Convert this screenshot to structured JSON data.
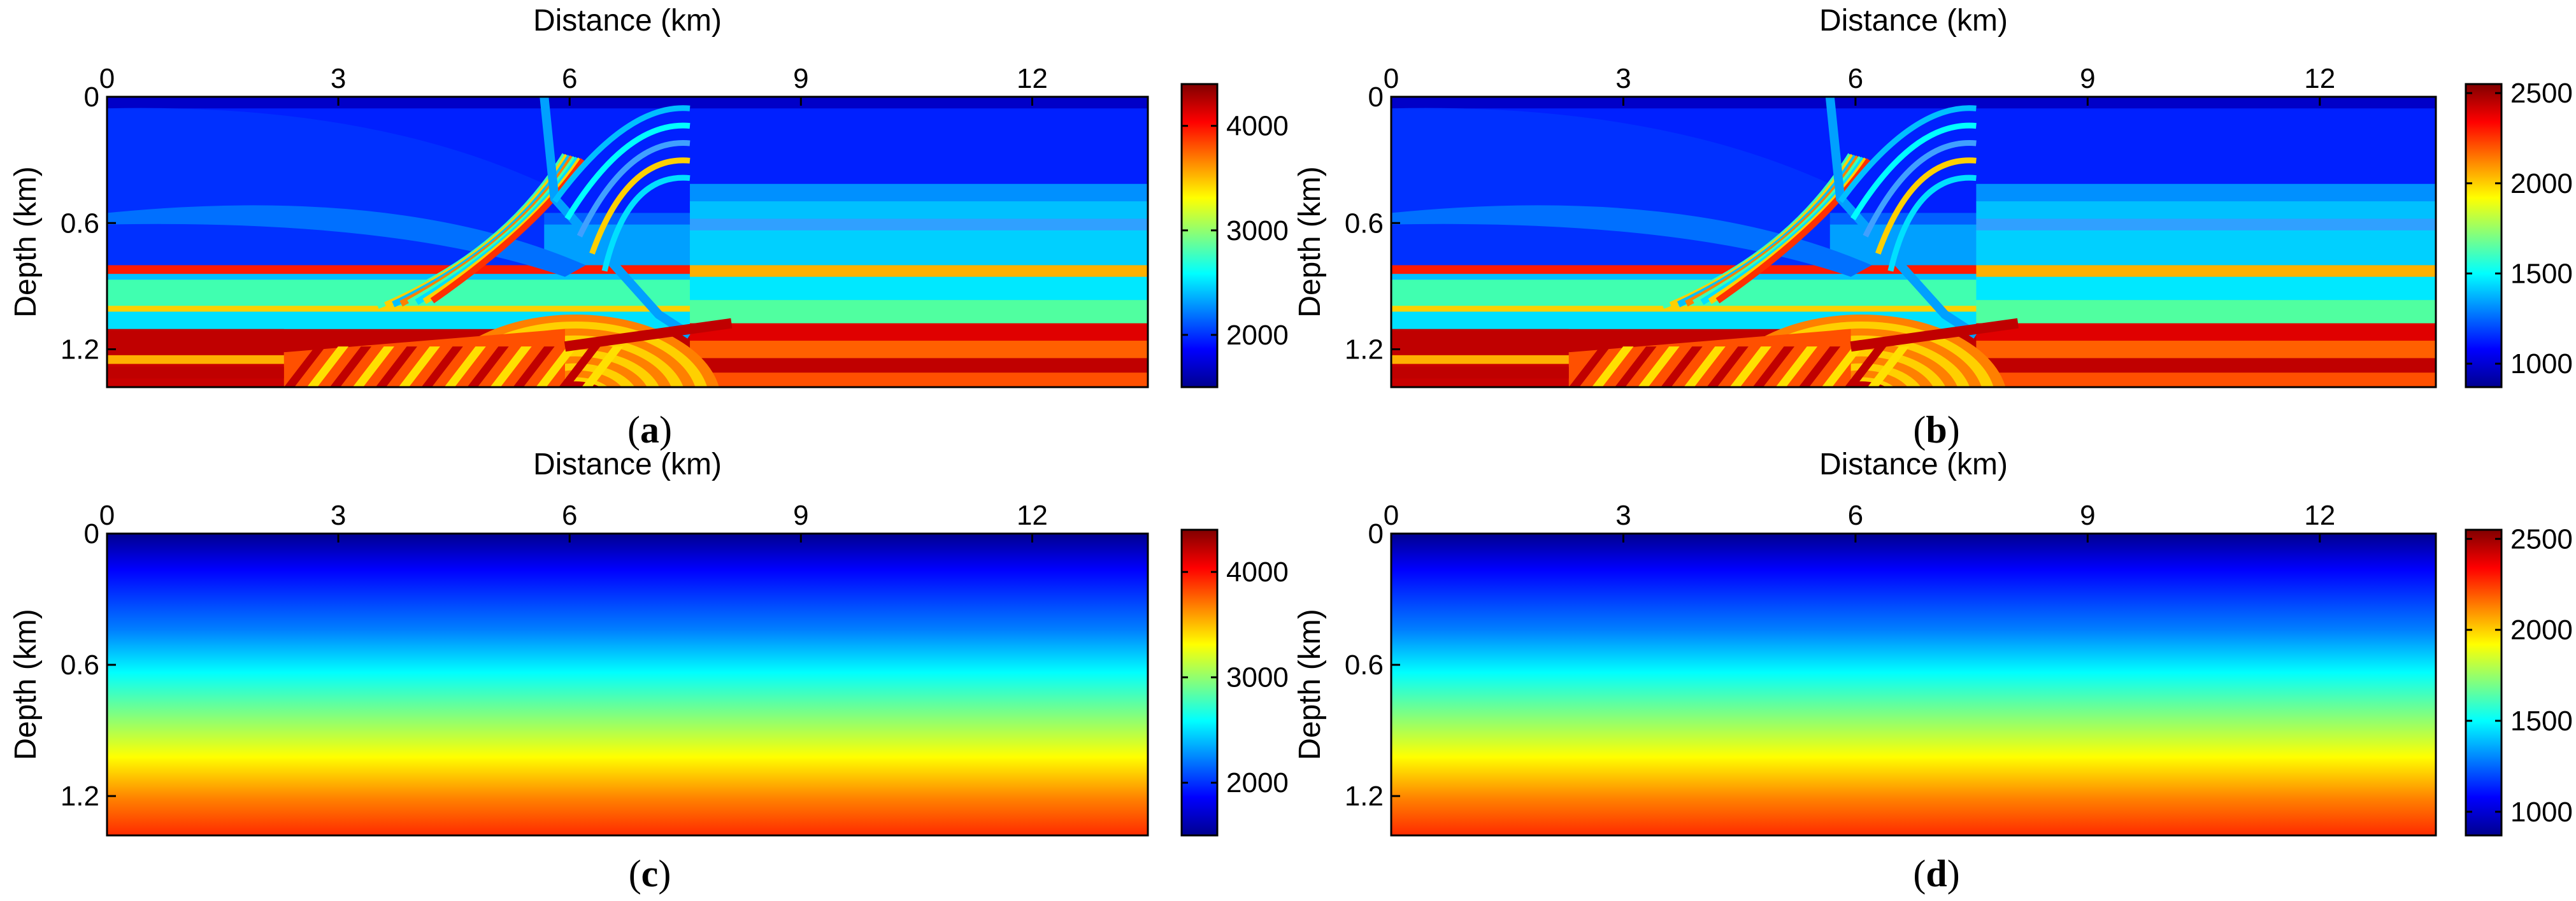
{
  "colormap": [
    "#00008f",
    "#0000ff",
    "#0080ff",
    "#00ffff",
    "#80ff80",
    "#ffff00",
    "#ff8000",
    "#ff0000",
    "#800000"
  ],
  "chart_data": [
    {
      "type": "heatmap",
      "panel_label": {
        "open": "(",
        "letter": "a",
        "close": ")"
      },
      "xlabel": "Distance (km)",
      "ylabel": "Depth (km)",
      "xlim": [
        0,
        13.5
      ],
      "ylim": [
        0,
        1.38
      ],
      "xticks": [
        "0",
        "3",
        "6",
        "9",
        "12"
      ],
      "xtick_values": [
        0,
        3,
        6,
        9,
        12
      ],
      "yticks": [
        "0",
        "0.6",
        "1.2"
      ],
      "ytick_values": [
        0,
        0.6,
        1.2
      ],
      "model": "layered-fault",
      "colorbar": {
        "min": 1500,
        "max": 4400,
        "ticks": [
          "2000",
          "3000",
          "4000"
        ],
        "tick_values": [
          2000,
          3000,
          4000
        ]
      }
    },
    {
      "type": "heatmap",
      "panel_label": {
        "open": "(",
        "letter": "b",
        "close": ")"
      },
      "xlabel": "Distance (km)",
      "ylabel": "Depth (km)",
      "xlim": [
        0,
        13.5
      ],
      "ylim": [
        0,
        1.38
      ],
      "xticks": [
        "0",
        "3",
        "6",
        "9",
        "12"
      ],
      "xtick_values": [
        0,
        3,
        6,
        9,
        12
      ],
      "yticks": [
        "0",
        "0.6",
        "1.2"
      ],
      "ytick_values": [
        0,
        0.6,
        1.2
      ],
      "model": "layered-fault",
      "colorbar": {
        "min": 870,
        "max": 2550,
        "ticks": [
          "1000",
          "1500",
          "2000",
          "2500"
        ],
        "tick_values": [
          1000,
          1500,
          2000,
          2500
        ]
      }
    },
    {
      "type": "heatmap",
      "panel_label": {
        "open": "(",
        "letter": "c",
        "close": ")"
      },
      "xlabel": "Distance (km)",
      "ylabel": "Depth (km)",
      "xlim": [
        0,
        13.5
      ],
      "ylim": [
        0,
        1.38
      ],
      "xticks": [
        "0",
        "3",
        "6",
        "9",
        "12"
      ],
      "xtick_values": [
        0,
        3,
        6,
        9,
        12
      ],
      "yticks": [
        "0",
        "0.6",
        "1.2"
      ],
      "ytick_values": [
        0,
        0.6,
        1.2
      ],
      "model": "linear-gradient",
      "colorbar": {
        "min": 1500,
        "max": 4400,
        "ticks": [
          "2000",
          "3000",
          "4000"
        ],
        "tick_values": [
          2000,
          3000,
          4000
        ]
      }
    },
    {
      "type": "heatmap",
      "panel_label": {
        "open": "(",
        "letter": "d",
        "close": ")"
      },
      "xlabel": "Distance (km)",
      "ylabel": "Depth (km)",
      "xlim": [
        0,
        13.5
      ],
      "ylim": [
        0,
        1.38
      ],
      "xticks": [
        "0",
        "3",
        "6",
        "9",
        "12"
      ],
      "xtick_values": [
        0,
        3,
        6,
        9,
        12
      ],
      "yticks": [
        "0",
        "0.6",
        "1.2"
      ],
      "ytick_values": [
        0,
        0.6,
        1.2
      ],
      "model": "linear-gradient",
      "colorbar": {
        "min": 870,
        "max": 2550,
        "ticks": [
          "1000",
          "1500",
          "2000",
          "2500"
        ],
        "tick_values": [
          1000,
          1500,
          2000,
          2500
        ]
      }
    }
  ]
}
